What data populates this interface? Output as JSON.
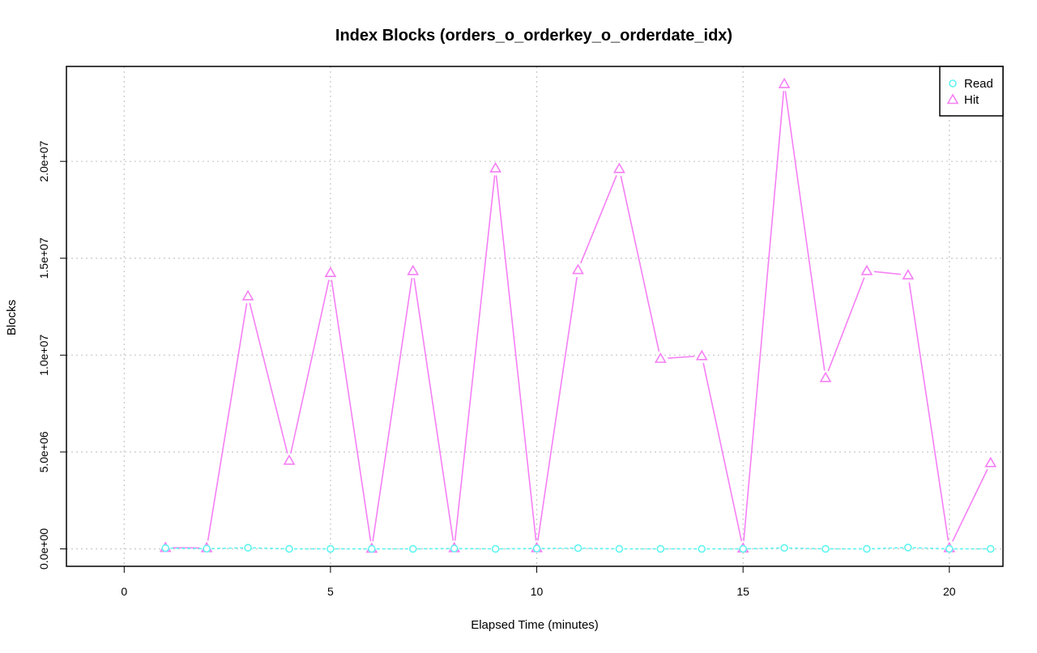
{
  "chart_data": {
    "type": "line",
    "title": "Index Blocks (orders_o_orderkey_o_orderdate_idx)",
    "xlabel": "Elapsed Time (minutes)",
    "ylabel": "Blocks",
    "xlim": [
      -1.4,
      21.3
    ],
    "ylim": [
      -900000,
      24900000
    ],
    "x_ticks": [
      0,
      5,
      10,
      15,
      20
    ],
    "x_tick_labels": [
      "0",
      "5",
      "10",
      "15",
      "20"
    ],
    "y_ticks": [
      0,
      5000000,
      10000000,
      15000000,
      20000000
    ],
    "y_tick_labels": [
      "0.0e+00",
      "5.0e+06",
      "1.0e+07",
      "1.5e+07",
      "2.0e+07"
    ],
    "grid": true,
    "legend_position": "top-right",
    "x": [
      1,
      2,
      3,
      4,
      5,
      6,
      7,
      8,
      9,
      10,
      11,
      12,
      13,
      14,
      15,
      16,
      17,
      18,
      19,
      20,
      21
    ],
    "series": [
      {
        "name": "Read",
        "color": "#5ff5f0",
        "marker": "circle",
        "line_style": "dashed",
        "values": [
          40000,
          10000,
          60000,
          0,
          0,
          0,
          0,
          20000,
          0,
          20000,
          40000,
          0,
          0,
          0,
          0,
          50000,
          0,
          0,
          70000,
          0,
          0
        ]
      },
      {
        "name": "Hit",
        "color": "#f57ff5",
        "marker": "triangle",
        "line_style": "solid",
        "values": [
          60000,
          50000,
          13050000,
          4560000,
          14250000,
          20000,
          14350000,
          50000,
          19650000,
          50000,
          14400000,
          19620000,
          9820000,
          9960000,
          30000,
          24000000,
          8830000,
          14350000,
          14130000,
          50000,
          4440000
        ]
      }
    ]
  }
}
